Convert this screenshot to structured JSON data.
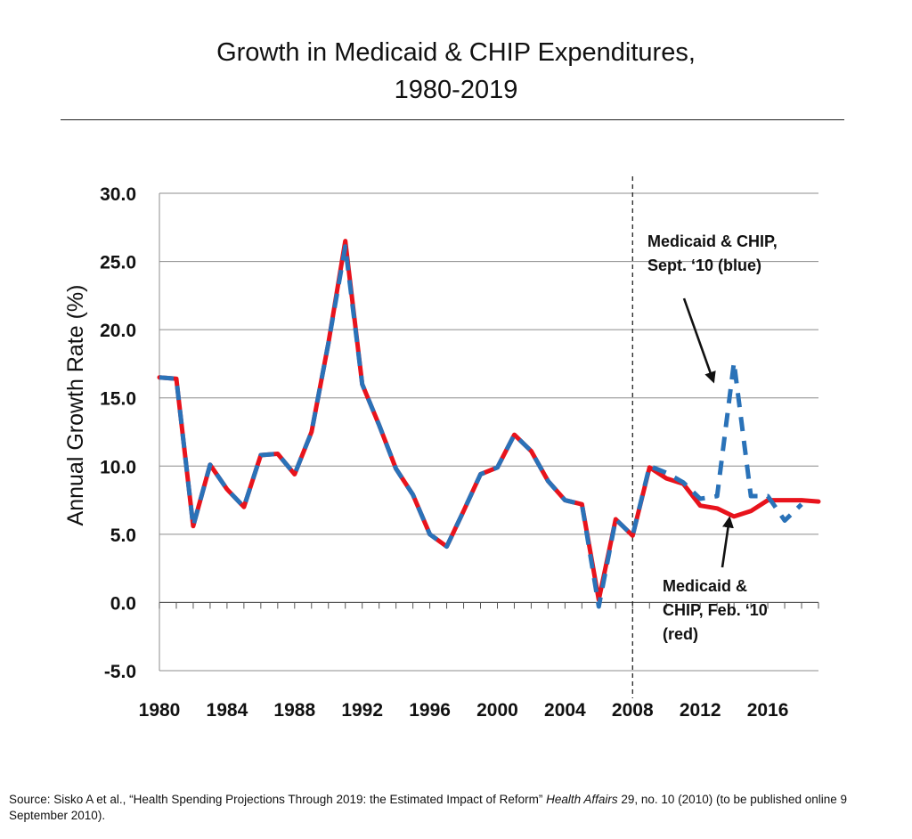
{
  "title_line1": "Growth in Medicaid & CHIP Expenditures,",
  "title_line2": "1980-2019",
  "source": {
    "prefix": "Source: Sisko A et al., “Health Spending Projections Through 2019: the Estimated Impact of Reform” ",
    "journal": "Health Affairs",
    "suffix": " 29, no. 10 (2010) (to be published online 9 September 2010)."
  },
  "annotations": {
    "blue": "Medicaid & CHIP,\nSept. ‘10 (blue)",
    "red": "Medicaid &\nCHIP, Feb. ‘10\n(red)"
  },
  "colors": {
    "red": "#e8131c",
    "blue": "#2a72b8",
    "grid": "#8c8c8c",
    "text": "#111111"
  },
  "chart_data": {
    "type": "line",
    "ylabel": "Annual Growth Rate (%)",
    "xlabel": "",
    "xlim": [
      1980,
      2019
    ],
    "ylim": [
      -5,
      30
    ],
    "y_ticks": [
      30,
      25,
      20,
      15,
      10,
      5,
      0,
      -5
    ],
    "y_tick_labels": [
      "30.0",
      "25.0",
      "20.0",
      "15.0",
      "10.0",
      "5.0",
      "0.0",
      "-5.0"
    ],
    "x_ticks": [
      1980,
      1984,
      1988,
      1992,
      1996,
      2000,
      2004,
      2008,
      2012,
      2016
    ],
    "x_tick_labels": [
      "1980",
      "1984",
      "1988",
      "1992",
      "1996",
      "2000",
      "2004",
      "2008",
      "2012",
      "2016"
    ],
    "grid": "horizontal",
    "vertical_marker": 2008,
    "x": [
      1980,
      1981,
      1982,
      1983,
      1984,
      1985,
      1986,
      1987,
      1988,
      1989,
      1990,
      1991,
      1992,
      1993,
      1994,
      1995,
      1996,
      1997,
      1998,
      1999,
      2000,
      2001,
      2002,
      2003,
      2004,
      2005,
      2006,
      2007,
      2008,
      2009,
      2010,
      2011,
      2012,
      2013,
      2014,
      2015,
      2016,
      2017,
      2018,
      2019
    ],
    "series": [
      {
        "name": "Medicaid & CHIP, Feb. ‘10",
        "color": "red",
        "style": "solid",
        "values": [
          16.5,
          16.4,
          5.6,
          10.1,
          8.3,
          7.0,
          10.8,
          10.9,
          9.4,
          12.5,
          19.0,
          26.5,
          16.0,
          13.0,
          9.8,
          7.9,
          5.0,
          4.1,
          6.7,
          9.4,
          9.9,
          12.3,
          11.1,
          8.9,
          7.5,
          7.2,
          0.2,
          6.1,
          4.9,
          9.9,
          9.1,
          8.7,
          7.1,
          6.9,
          6.3,
          6.7,
          7.5,
          7.5,
          7.5,
          7.4
        ]
      },
      {
        "name": "Medicaid & CHIP, Sept. ‘10",
        "color": "blue",
        "style": "dashed",
        "values": [
          16.5,
          16.4,
          5.6,
          10.1,
          8.3,
          7.0,
          10.8,
          10.9,
          9.4,
          12.5,
          19.0,
          26.1,
          16.0,
          13.0,
          9.8,
          7.9,
          5.0,
          4.1,
          6.7,
          9.4,
          9.9,
          12.3,
          11.1,
          8.9,
          7.5,
          7.2,
          -0.3,
          6.1,
          4.9,
          10.0,
          9.5,
          8.8,
          7.6,
          7.8,
          17.6,
          7.8,
          7.8,
          6.0,
          7.2,
          null
        ]
      }
    ]
  }
}
